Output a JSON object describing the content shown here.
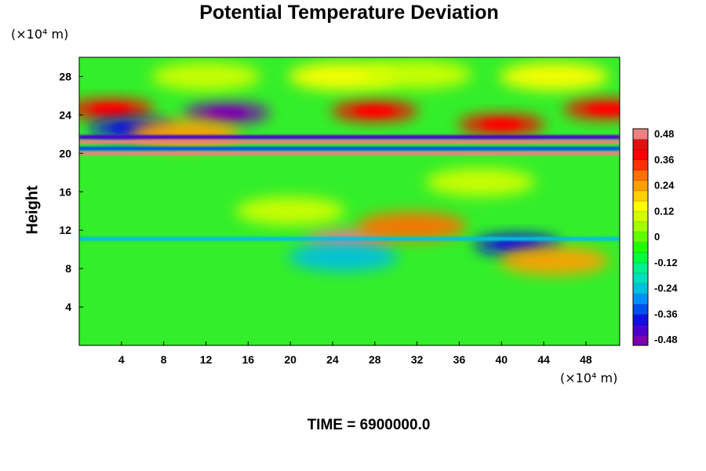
{
  "chart_data": {
    "type": "heatmap",
    "title": "Potential Temperature Deviation",
    "ylabel": "Height",
    "xlabel": "",
    "x_unit": "(×10⁴ m)",
    "y_unit": "(×10⁴ m)",
    "xlim": [
      0,
      51.2
    ],
    "ylim": [
      0,
      30
    ],
    "x_ticks": [
      4,
      8,
      12,
      16,
      20,
      24,
      28,
      32,
      36,
      40,
      44,
      48
    ],
    "y_ticks": [
      4,
      8,
      12,
      16,
      20,
      24,
      28
    ],
    "colorbar": {
      "range": [
        -0.48,
        0.48
      ],
      "tick_labels": [
        "0.48",
        "0.36",
        "0.24",
        "0.12",
        "0",
        "-0.12",
        "-0.24",
        "-0.36",
        "-0.48"
      ],
      "colors": [
        "#7a00b0",
        "#4a00d0",
        "#1010e0",
        "#0050f0",
        "#0090ff",
        "#00c0e0",
        "#00e0c0",
        "#00f090",
        "#00ff40",
        "#20ff00",
        "#60ff00",
        "#a0ff00",
        "#d0ff00",
        "#ffff00",
        "#ffd000",
        "#ffa000",
        "#ff7000",
        "#ff3000",
        "#ff0000",
        "#e01010",
        "#f08080"
      ]
    },
    "features": [
      {
        "x": 14,
        "y": 24.2,
        "value": -0.48
      },
      {
        "x": 3,
        "y": 24.6,
        "value": 0.36
      },
      {
        "x": 50,
        "y": 24.6,
        "value": 0.36
      },
      {
        "x": 28,
        "y": 24.4,
        "value": 0.36
      },
      {
        "x": 40,
        "y": 23.0,
        "value": 0.4
      },
      {
        "x": 25,
        "y": 28.0,
        "value": 0.12
      },
      {
        "x": 45,
        "y": 28.0,
        "value": 0.12
      },
      {
        "x": 12,
        "y": 28.0,
        "value": 0.1
      },
      {
        "x": 32,
        "y": 28.2,
        "value": 0.08
      },
      {
        "x": 5,
        "y": 22.6,
        "value": -0.4
      },
      {
        "x": 25.5,
        "y": 11.0,
        "value": 0.48
      },
      {
        "x": 41.5,
        "y": 10.5,
        "value": -0.4
      },
      {
        "x": 45,
        "y": 8.8,
        "value": 0.24
      },
      {
        "x": 25,
        "y": 9.2,
        "value": -0.24
      },
      {
        "x": 31.5,
        "y": 12.4,
        "value": 0.3
      },
      {
        "x": 10,
        "y": 22.0,
        "value": 0.24
      },
      {
        "x": 38,
        "y": 17.0,
        "value": 0.08
      },
      {
        "x": 20,
        "y": 14.0,
        "value": 0.08
      }
    ],
    "bands": [
      {
        "y": 21.2,
        "value": 0.48
      },
      {
        "y": 20.0,
        "value": 0.48
      },
      {
        "y": 21.7,
        "value": -0.42
      },
      {
        "y": 20.5,
        "value": -0.36
      },
      {
        "y": 11.1,
        "value": -0.24
      }
    ]
  },
  "footer": "TIME = 6900000.0"
}
